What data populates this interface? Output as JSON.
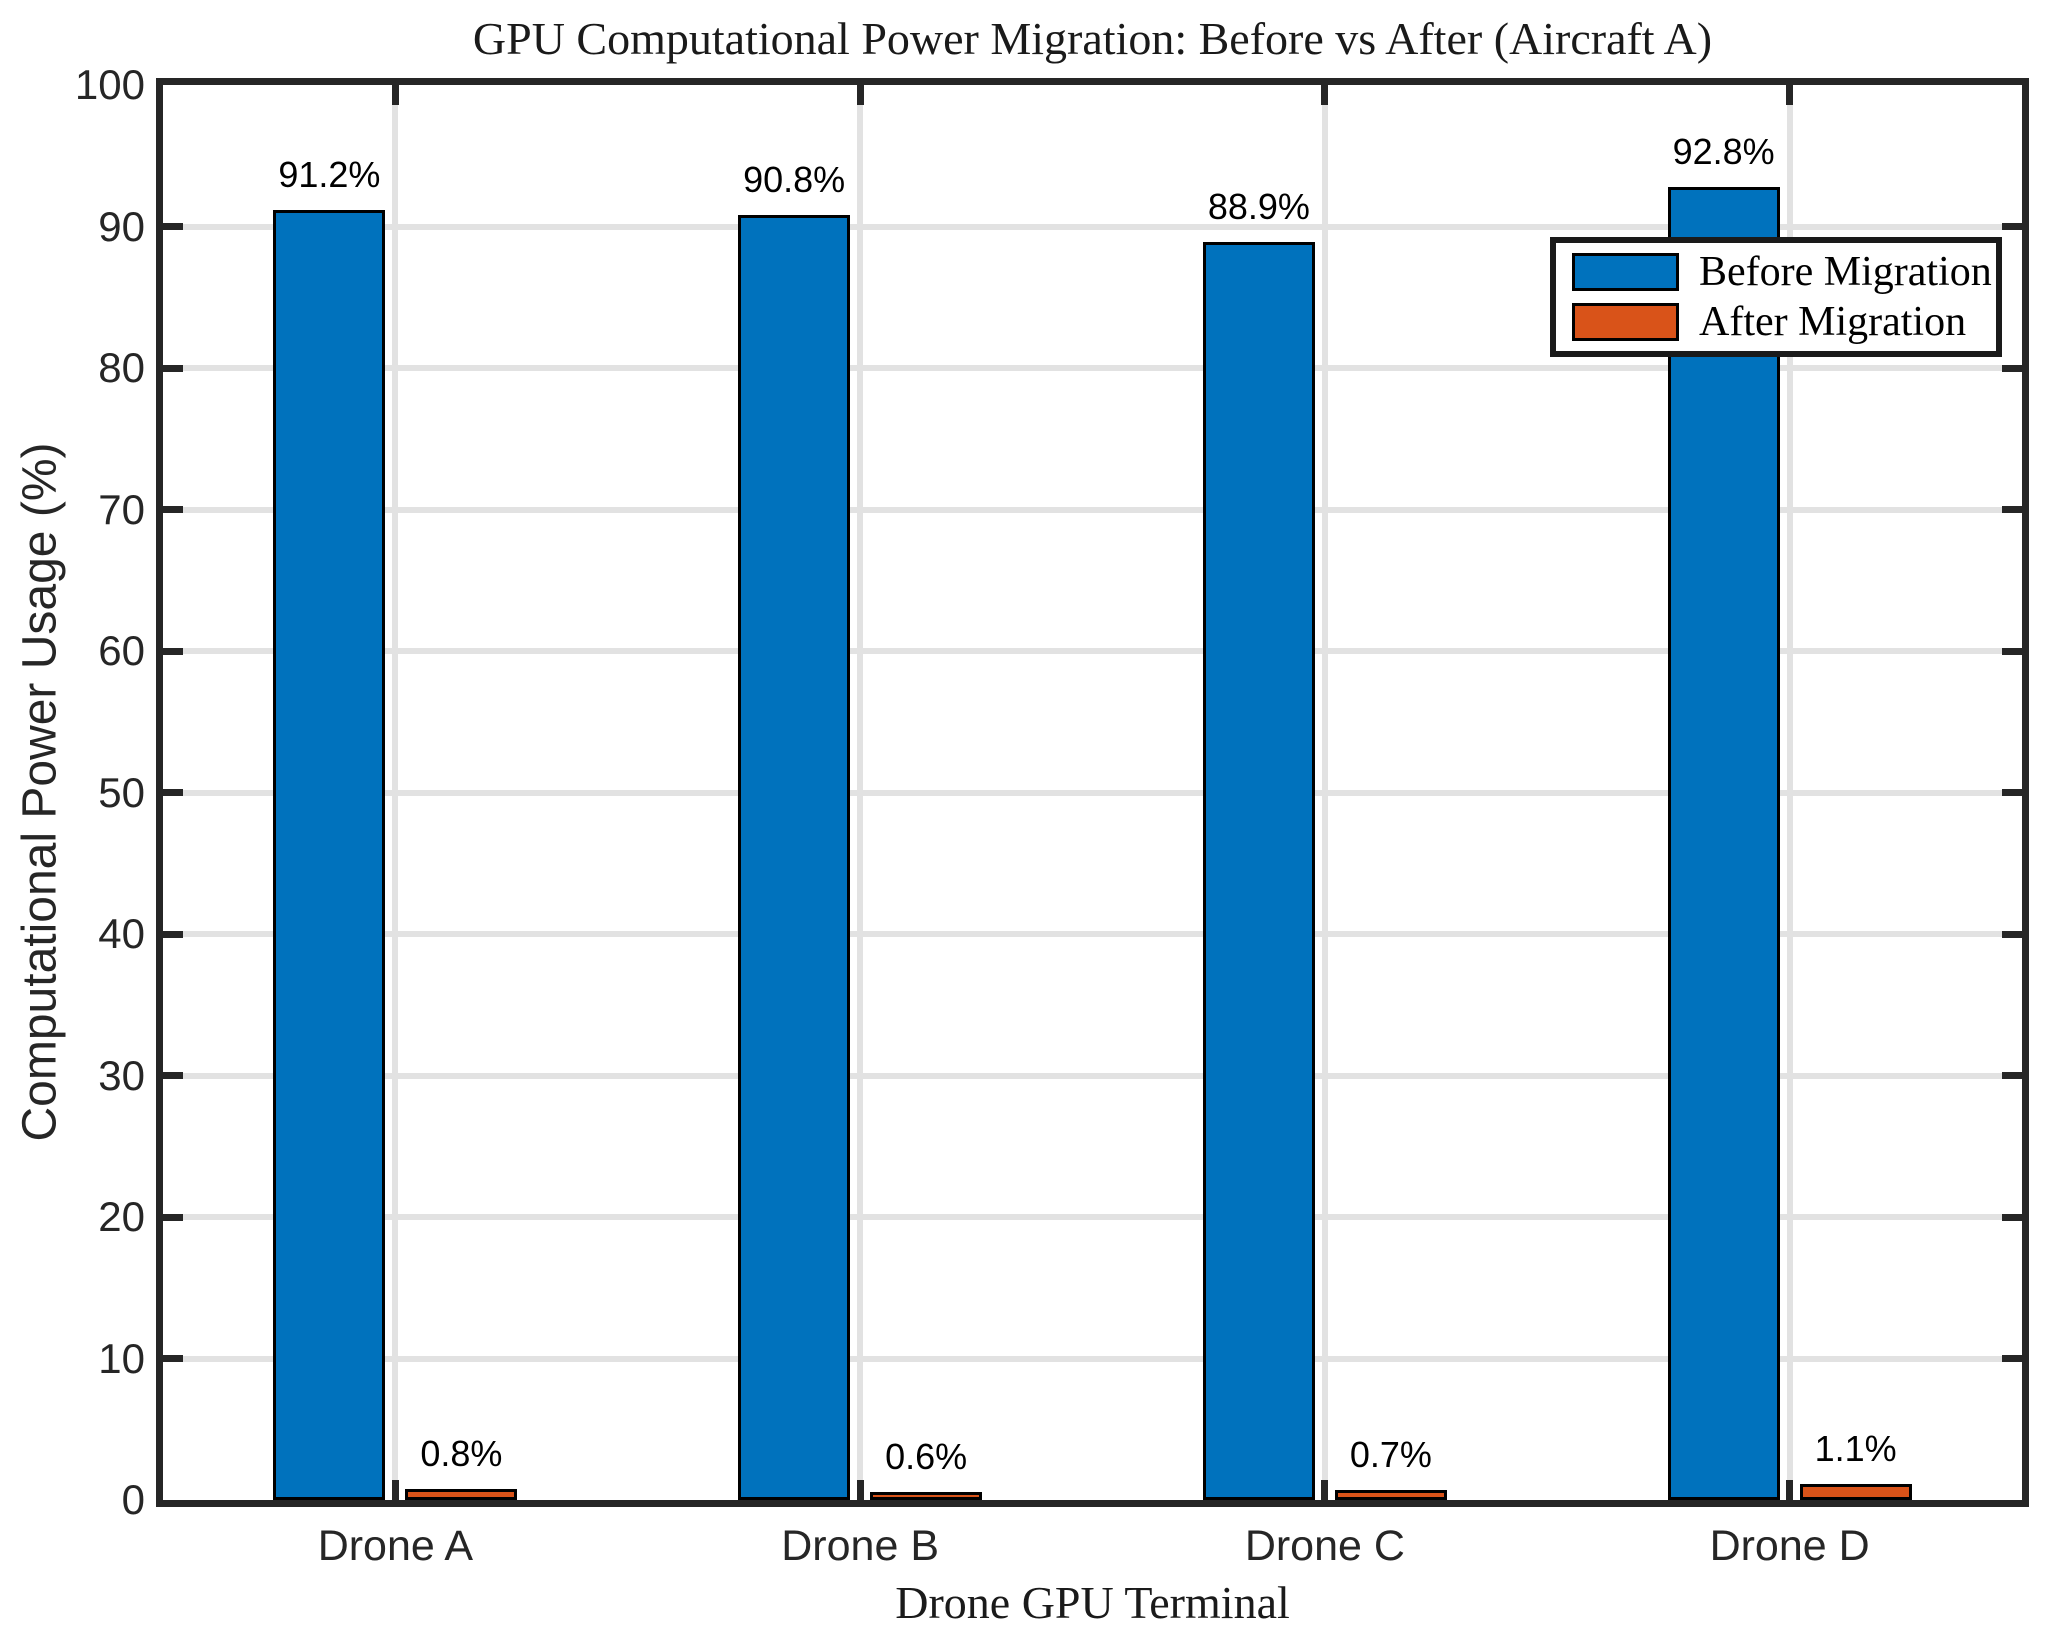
{
  "chart_data": {
    "type": "bar",
    "title": "GPU Computational Power Migration: Before vs After (Aircraft A)",
    "xlabel": "Drone GPU Terminal",
    "ylabel": "Computational Power Usage (%)",
    "categories": [
      "Drone A",
      "Drone B",
      "Drone C",
      "Drone D"
    ],
    "series": [
      {
        "name": "Before Migration",
        "color": "#0072BD",
        "values": [
          91.2,
          90.8,
          88.9,
          92.8
        ],
        "value_labels": [
          "91.2%",
          "90.8%",
          "88.9%",
          "92.8%"
        ]
      },
      {
        "name": "After Migration",
        "color": "#D95319",
        "values": [
          0.8,
          0.6,
          0.7,
          1.1
        ],
        "value_labels": [
          "0.8%",
          "0.6%",
          "0.7%",
          "1.1%"
        ]
      }
    ],
    "ylim": [
      0,
      100
    ],
    "yticks": [
      0,
      10,
      20,
      30,
      40,
      50,
      60,
      70,
      80,
      90,
      100
    ],
    "ytick_labels": [
      "0",
      "10",
      "20",
      "30",
      "40",
      "50",
      "60",
      "70",
      "80",
      "90",
      "100"
    ],
    "grid": true,
    "legend_position": "upper-right-inside",
    "colors": {
      "axis": "#262626",
      "grid": "#e2e2e2",
      "bar_edge": "#000000",
      "background": "#ffffff"
    }
  }
}
